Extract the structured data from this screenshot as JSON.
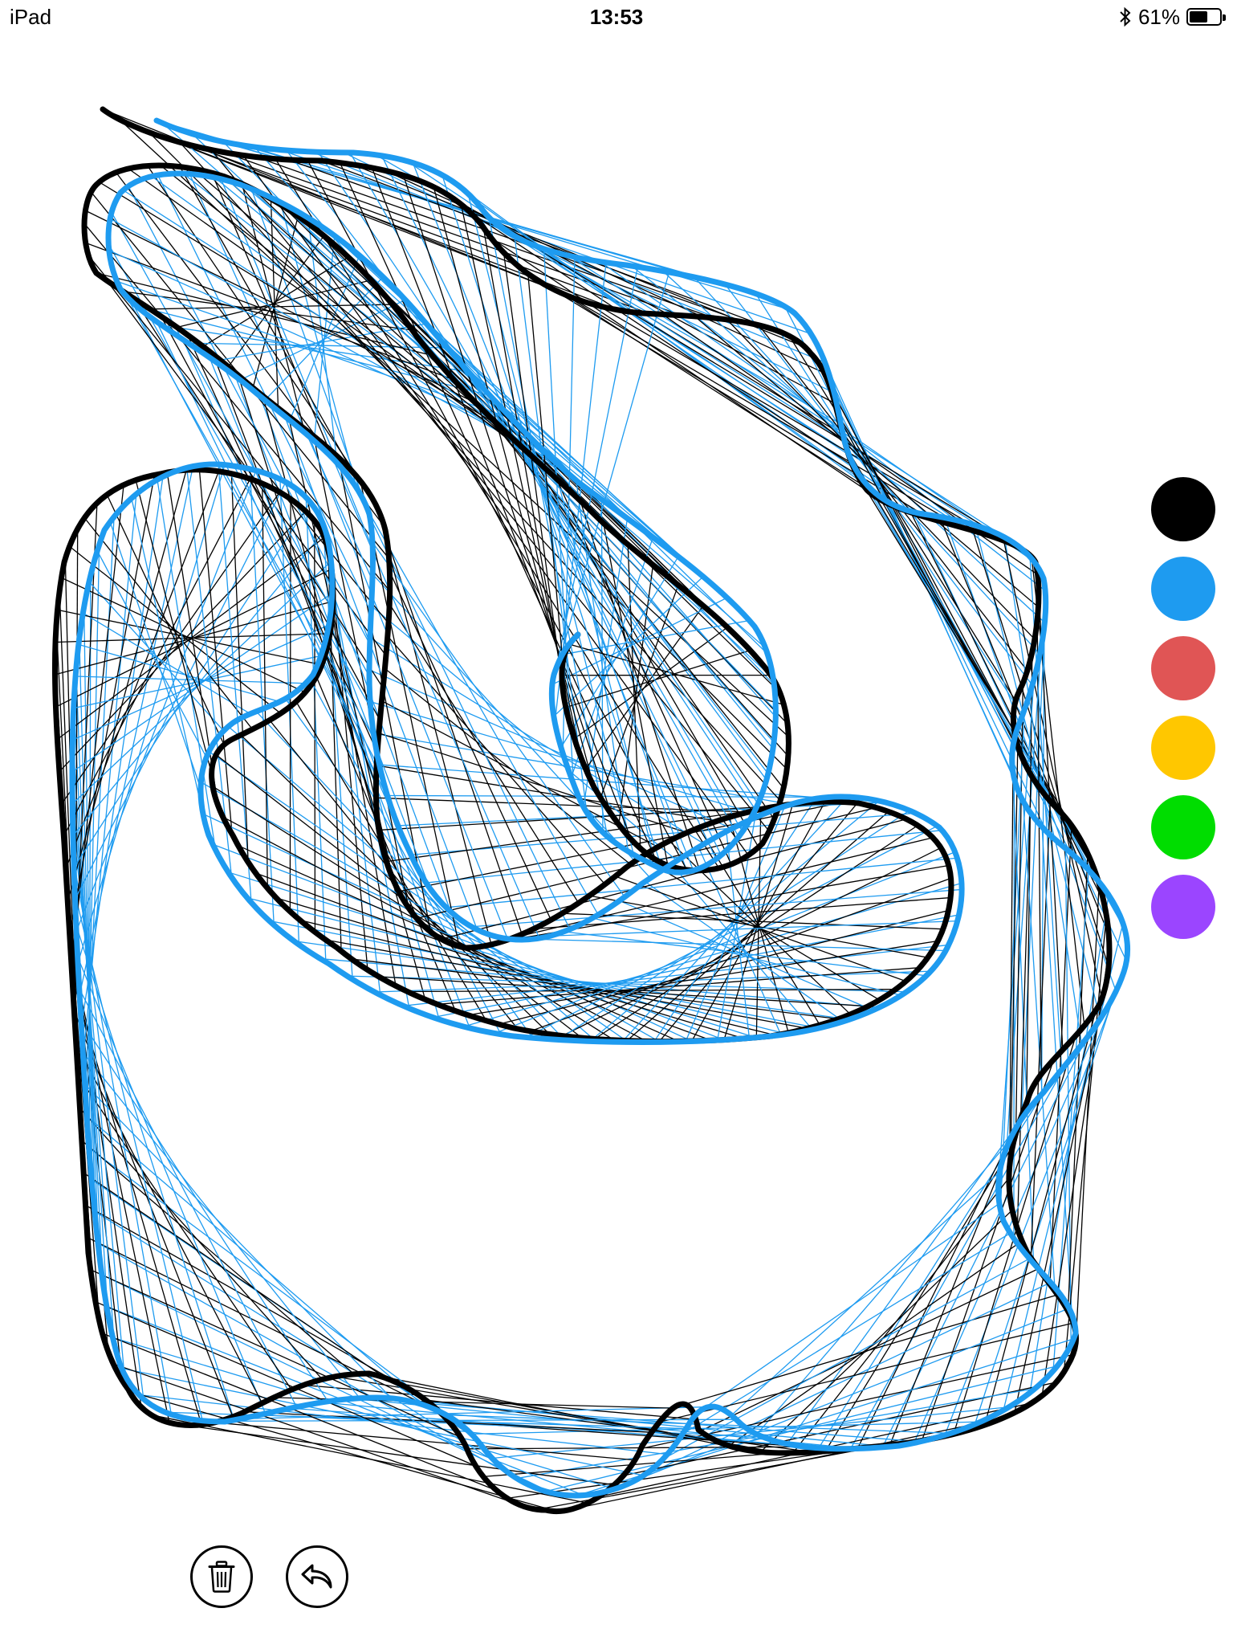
{
  "status_bar": {
    "device": "iPad",
    "time": "13:53",
    "battery_label": "61%",
    "battery_level": 0.61,
    "bluetooth_icon": "bluetooth-icon"
  },
  "palette": {
    "colors": [
      {
        "name": "black",
        "hex": "#000000"
      },
      {
        "name": "blue",
        "hex": "#1E9BF0"
      },
      {
        "name": "red",
        "hex": "#E05555"
      },
      {
        "name": "yellow",
        "hex": "#FFC700"
      },
      {
        "name": "green",
        "hex": "#00DD00"
      },
      {
        "name": "purple",
        "hex": "#9B45FF"
      }
    ],
    "selected": "blue"
  },
  "toolbar": {
    "clear_icon": "trash-icon",
    "undo_icon": "undo-icon"
  }
}
